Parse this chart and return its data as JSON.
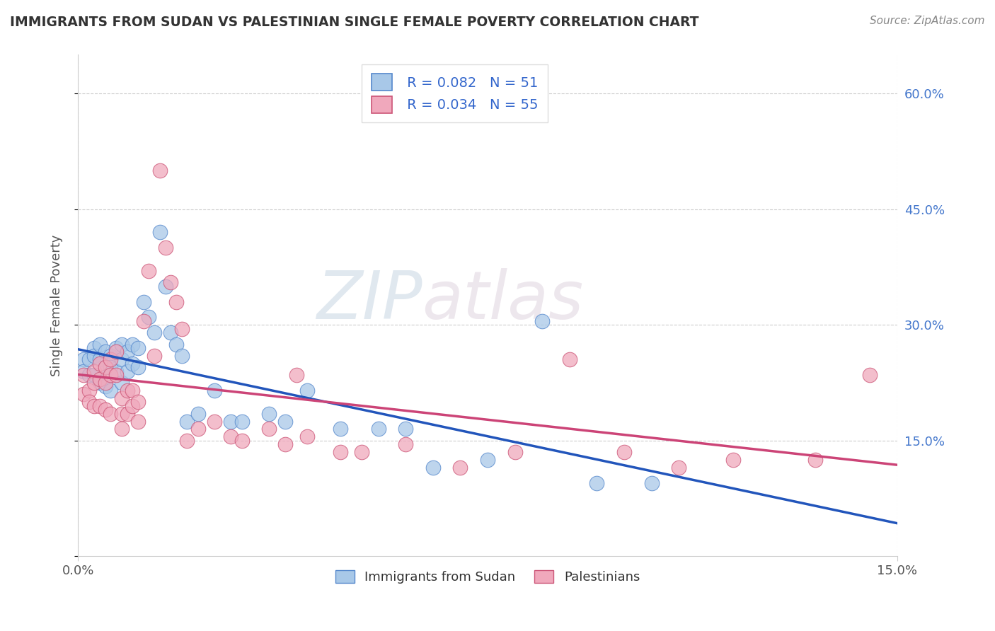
{
  "title": "IMMIGRANTS FROM SUDAN VS PALESTINIAN SINGLE FEMALE POVERTY CORRELATION CHART",
  "source": "Source: ZipAtlas.com",
  "ylabel": "Single Female Poverty",
  "xlim": [
    0.0,
    0.15
  ],
  "ylim": [
    0.0,
    0.65
  ],
  "sudan_color": "#a8c8e8",
  "palestinian_color": "#f0a8bc",
  "sudan_edge": "#5588cc",
  "palestinian_edge": "#cc5577",
  "line_sudan": "#2255bb",
  "line_palestinian": "#cc4477",
  "legend_R_sudan": "R = 0.082",
  "legend_N_sudan": "N = 51",
  "legend_R_palestinian": "R = 0.034",
  "legend_N_palestinian": "N = 55",
  "watermark_zip": "ZIP",
  "watermark_atlas": "atlas",
  "grid_color": "#cccccc",
  "sudan_x": [
    0.001,
    0.001,
    0.002,
    0.002,
    0.003,
    0.003,
    0.003,
    0.004,
    0.004,
    0.004,
    0.005,
    0.005,
    0.005,
    0.006,
    0.006,
    0.006,
    0.007,
    0.007,
    0.008,
    0.008,
    0.008,
    0.009,
    0.009,
    0.01,
    0.01,
    0.011,
    0.011,
    0.012,
    0.013,
    0.014,
    0.015,
    0.016,
    0.017,
    0.018,
    0.019,
    0.02,
    0.022,
    0.025,
    0.028,
    0.03,
    0.035,
    0.038,
    0.042,
    0.048,
    0.055,
    0.06,
    0.065,
    0.075,
    0.085,
    0.095,
    0.105
  ],
  "sudan_y": [
    0.255,
    0.24,
    0.255,
    0.235,
    0.27,
    0.26,
    0.235,
    0.275,
    0.255,
    0.225,
    0.265,
    0.245,
    0.22,
    0.26,
    0.245,
    0.215,
    0.27,
    0.24,
    0.275,
    0.255,
    0.225,
    0.265,
    0.24,
    0.275,
    0.25,
    0.27,
    0.245,
    0.33,
    0.31,
    0.29,
    0.42,
    0.35,
    0.29,
    0.275,
    0.26,
    0.175,
    0.185,
    0.215,
    0.175,
    0.175,
    0.185,
    0.175,
    0.215,
    0.165,
    0.165,
    0.165,
    0.115,
    0.125,
    0.305,
    0.095,
    0.095
  ],
  "palestinian_x": [
    0.001,
    0.001,
    0.002,
    0.002,
    0.003,
    0.003,
    0.003,
    0.004,
    0.004,
    0.004,
    0.005,
    0.005,
    0.005,
    0.006,
    0.006,
    0.006,
    0.007,
    0.007,
    0.008,
    0.008,
    0.008,
    0.009,
    0.009,
    0.01,
    0.01,
    0.011,
    0.011,
    0.012,
    0.013,
    0.014,
    0.015,
    0.016,
    0.017,
    0.018,
    0.019,
    0.02,
    0.022,
    0.025,
    0.028,
    0.03,
    0.035,
    0.038,
    0.04,
    0.042,
    0.048,
    0.052,
    0.06,
    0.07,
    0.08,
    0.09,
    0.1,
    0.11,
    0.12,
    0.135,
    0.145
  ],
  "palestinian_y": [
    0.235,
    0.21,
    0.215,
    0.2,
    0.24,
    0.225,
    0.195,
    0.25,
    0.23,
    0.195,
    0.245,
    0.225,
    0.19,
    0.255,
    0.235,
    0.185,
    0.265,
    0.235,
    0.205,
    0.185,
    0.165,
    0.215,
    0.185,
    0.215,
    0.195,
    0.2,
    0.175,
    0.305,
    0.37,
    0.26,
    0.5,
    0.4,
    0.355,
    0.33,
    0.295,
    0.15,
    0.165,
    0.175,
    0.155,
    0.15,
    0.165,
    0.145,
    0.235,
    0.155,
    0.135,
    0.135,
    0.145,
    0.115,
    0.135,
    0.255,
    0.135,
    0.115,
    0.125,
    0.125,
    0.235
  ]
}
